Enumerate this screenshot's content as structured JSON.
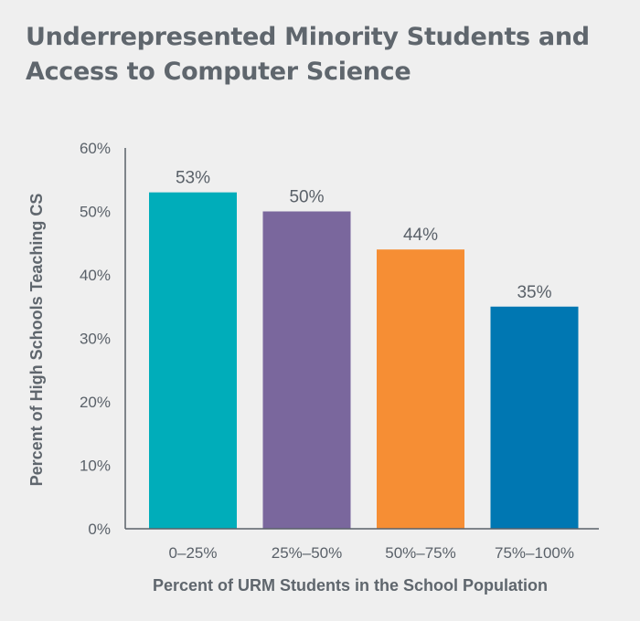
{
  "chart_data": {
    "type": "bar",
    "title": "Underrepresented Minority Students and Access to Computer Science",
    "xlabel": "Percent of URM Students in the School Population",
    "ylabel": "Percent of High Schools Teaching CS",
    "categories": [
      "0–25%",
      "25%–50%",
      "50%–75%",
      "75%–100%"
    ],
    "values": [
      53,
      50,
      44,
      35
    ],
    "data_labels": [
      "53%",
      "50%",
      "44%",
      "35%"
    ],
    "colors": [
      "#00adba",
      "#7a679d",
      "#f68e34",
      "#0077b2"
    ],
    "ylim": [
      0,
      60
    ],
    "yticks": [
      0,
      10,
      20,
      30,
      40,
      50,
      60
    ],
    "ytick_labels": [
      "0%",
      "10%",
      "20%",
      "30%",
      "40%",
      "50%",
      "60%"
    ],
    "grid": false,
    "legend": "none"
  }
}
